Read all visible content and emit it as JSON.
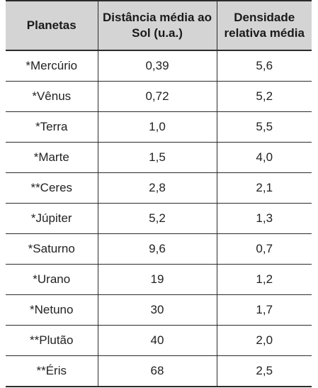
{
  "table": {
    "headers": [
      "Planetas",
      "Distância média ao Sol (u.a.)",
      "Densidade relativa média"
    ],
    "rows": [
      [
        "*Mercúrio",
        "0,39",
        "5,6"
      ],
      [
        "*Vênus",
        "0,72",
        "5,2"
      ],
      [
        "*Terra",
        "1,0",
        "5,5"
      ],
      [
        "*Marte",
        "1,5",
        "4,0"
      ],
      [
        "**Ceres",
        "2,8",
        "2,1"
      ],
      [
        "*Júpiter",
        "5,2",
        "1,3"
      ],
      [
        "*Saturno",
        "9,6",
        "0,7"
      ],
      [
        "*Urano",
        "19",
        "1,2"
      ],
      [
        "*Netuno",
        "30",
        "1,7"
      ],
      [
        "**Plutão",
        "40",
        "2,0"
      ],
      [
        "**Éris",
        "68",
        "2,5"
      ]
    ]
  },
  "colors": {
    "header_background": "#d4d4d4",
    "rule": "#2b2b2b",
    "text": "#222222"
  }
}
